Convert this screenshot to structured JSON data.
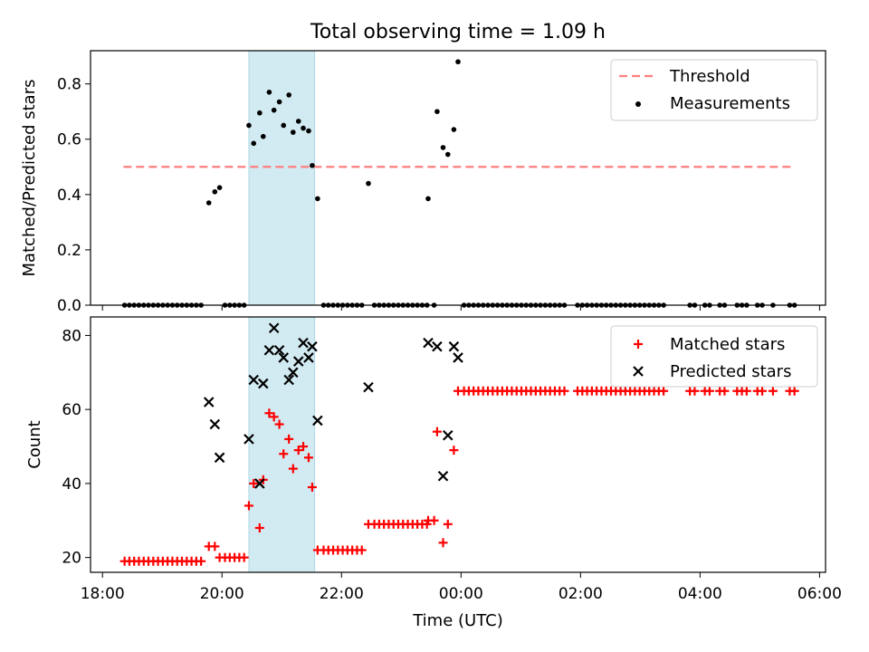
{
  "chart_data": {
    "title": "Total observing time = 1.09 h",
    "xlabel": "Time (UTC)",
    "x_axis": {
      "ticks": [
        "18:00",
        "20:00",
        "22:00",
        "00:00",
        "02:00",
        "04:00",
        "06:00"
      ],
      "tick_hours": [
        18,
        20,
        22,
        24,
        26,
        28,
        30
      ],
      "range_hours": [
        17.8,
        30.1
      ]
    },
    "shaded_interval_hours": [
      20.45,
      21.55
    ],
    "colors": {
      "shade": "#add8e6",
      "threshold": "#ff7f7f",
      "measurements": "#000000",
      "matched": "#ff0000",
      "predicted": "#000000"
    },
    "top": {
      "type": "scatter",
      "ylabel": "Matched/Predicted stars",
      "ylim": [
        0,
        0.92
      ],
      "yticks": [
        "0.0",
        "0.2",
        "0.4",
        "0.6",
        "0.8"
      ],
      "ytick_values": [
        0,
        0.2,
        0.4,
        0.6,
        0.8
      ],
      "legend_position": "top-right",
      "threshold": {
        "name": "Threshold",
        "value": 0.5,
        "x_range": [
          18.35,
          29.55
        ]
      },
      "series": {
        "name": "Measurements",
        "points": [
          [
            18.37,
            0
          ],
          [
            18.45,
            0
          ],
          [
            18.53,
            0
          ],
          [
            18.61,
            0
          ],
          [
            18.69,
            0
          ],
          [
            18.77,
            0
          ],
          [
            18.85,
            0
          ],
          [
            18.93,
            0
          ],
          [
            19.01,
            0
          ],
          [
            19.09,
            0
          ],
          [
            19.17,
            0
          ],
          [
            19.25,
            0
          ],
          [
            19.33,
            0
          ],
          [
            19.41,
            0
          ],
          [
            19.49,
            0
          ],
          [
            19.57,
            0
          ],
          [
            19.65,
            0
          ],
          [
            19.78,
            0.37
          ],
          [
            19.88,
            0.41
          ],
          [
            19.96,
            0.425
          ],
          [
            20.05,
            0
          ],
          [
            20.13,
            0
          ],
          [
            20.21,
            0
          ],
          [
            20.29,
            0
          ],
          [
            20.37,
            0
          ],
          [
            20.45,
            0.65
          ],
          [
            20.53,
            0.585
          ],
          [
            20.63,
            0.695
          ],
          [
            20.69,
            0.61
          ],
          [
            20.79,
            0.77
          ],
          [
            20.87,
            0.705
          ],
          [
            20.96,
            0.735
          ],
          [
            21.03,
            0.65
          ],
          [
            21.12,
            0.76
          ],
          [
            21.19,
            0.625
          ],
          [
            21.28,
            0.665
          ],
          [
            21.36,
            0.64
          ],
          [
            21.45,
            0.63
          ],
          [
            21.51,
            0.505
          ],
          [
            21.6,
            0.385
          ],
          [
            21.7,
            0
          ],
          [
            21.78,
            0
          ],
          [
            21.86,
            0
          ],
          [
            21.94,
            0
          ],
          [
            22.02,
            0
          ],
          [
            22.1,
            0
          ],
          [
            22.18,
            0
          ],
          [
            22.26,
            0
          ],
          [
            22.34,
            0
          ],
          [
            22.45,
            0.44
          ],
          [
            22.55,
            0
          ],
          [
            22.63,
            0
          ],
          [
            22.71,
            0
          ],
          [
            22.79,
            0
          ],
          [
            22.87,
            0
          ],
          [
            22.95,
            0
          ],
          [
            23.03,
            0
          ],
          [
            23.11,
            0
          ],
          [
            23.19,
            0
          ],
          [
            23.27,
            0
          ],
          [
            23.35,
            0
          ],
          [
            23.43,
            0
          ],
          [
            23.45,
            0.385
          ],
          [
            23.55,
            0
          ],
          [
            23.6,
            0.7
          ],
          [
            23.7,
            0.57
          ],
          [
            23.78,
            0.545
          ],
          [
            23.88,
            0.635
          ],
          [
            23.95,
            0.88
          ],
          [
            24.05,
            0
          ],
          [
            24.13,
            0
          ],
          [
            24.21,
            0
          ],
          [
            24.29,
            0
          ],
          [
            24.37,
            0
          ],
          [
            24.45,
            0
          ],
          [
            24.53,
            0
          ],
          [
            24.61,
            0
          ],
          [
            24.69,
            0
          ],
          [
            24.77,
            0
          ],
          [
            24.85,
            0
          ],
          [
            24.93,
            0
          ],
          [
            25.01,
            0
          ],
          [
            25.09,
            0
          ],
          [
            25.17,
            0
          ],
          [
            25.25,
            0
          ],
          [
            25.33,
            0
          ],
          [
            25.41,
            0
          ],
          [
            25.49,
            0
          ],
          [
            25.57,
            0
          ],
          [
            25.65,
            0
          ],
          [
            25.73,
            0
          ],
          [
            25.95,
            0
          ],
          [
            26.03,
            0
          ],
          [
            26.11,
            0
          ],
          [
            26.19,
            0
          ],
          [
            26.27,
            0
          ],
          [
            26.35,
            0
          ],
          [
            26.43,
            0
          ],
          [
            26.51,
            0
          ],
          [
            26.59,
            0
          ],
          [
            26.67,
            0
          ],
          [
            26.75,
            0
          ],
          [
            26.83,
            0
          ],
          [
            26.91,
            0
          ],
          [
            26.99,
            0
          ],
          [
            27.07,
            0
          ],
          [
            27.15,
            0
          ],
          [
            27.23,
            0
          ],
          [
            27.31,
            0
          ],
          [
            27.39,
            0
          ],
          [
            27.83,
            0
          ],
          [
            27.91,
            0
          ],
          [
            28.08,
            0
          ],
          [
            28.16,
            0
          ],
          [
            28.33,
            0
          ],
          [
            28.41,
            0
          ],
          [
            28.62,
            0
          ],
          [
            28.7,
            0
          ],
          [
            28.78,
            0
          ],
          [
            28.96,
            0
          ],
          [
            29.04,
            0
          ],
          [
            29.22,
            0
          ],
          [
            29.5,
            0
          ],
          [
            29.58,
            0
          ]
        ]
      }
    },
    "bottom": {
      "type": "scatter",
      "ylabel": "Count",
      "ylim": [
        16,
        85
      ],
      "yticks": [
        "20",
        "40",
        "60",
        "80"
      ],
      "ytick_values": [
        20,
        40,
        60,
        80
      ],
      "legend_position": "top-right",
      "series": [
        {
          "name": "Matched stars",
          "marker": "plus",
          "points": [
            [
              18.37,
              19
            ],
            [
              18.45,
              19
            ],
            [
              18.53,
              19
            ],
            [
              18.61,
              19
            ],
            [
              18.69,
              19
            ],
            [
              18.77,
              19
            ],
            [
              18.85,
              19
            ],
            [
              18.93,
              19
            ],
            [
              19.01,
              19
            ],
            [
              19.09,
              19
            ],
            [
              19.17,
              19
            ],
            [
              19.25,
              19
            ],
            [
              19.33,
              19
            ],
            [
              19.41,
              19
            ],
            [
              19.49,
              19
            ],
            [
              19.57,
              19
            ],
            [
              19.65,
              19
            ],
            [
              19.78,
              23
            ],
            [
              19.88,
              23
            ],
            [
              19.96,
              20
            ],
            [
              20.05,
              20
            ],
            [
              20.13,
              20
            ],
            [
              20.21,
              20
            ],
            [
              20.29,
              20
            ],
            [
              20.37,
              20
            ],
            [
              20.45,
              34
            ],
            [
              20.53,
              40
            ],
            [
              20.63,
              28
            ],
            [
              20.69,
              41
            ],
            [
              20.79,
              59
            ],
            [
              20.87,
              58
            ],
            [
              20.96,
              56
            ],
            [
              21.03,
              48
            ],
            [
              21.12,
              52
            ],
            [
              21.19,
              44
            ],
            [
              21.28,
              49
            ],
            [
              21.36,
              50
            ],
            [
              21.45,
              47
            ],
            [
              21.51,
              39
            ],
            [
              21.6,
              22
            ],
            [
              21.7,
              22
            ],
            [
              21.78,
              22
            ],
            [
              21.86,
              22
            ],
            [
              21.94,
              22
            ],
            [
              22.02,
              22
            ],
            [
              22.1,
              22
            ],
            [
              22.18,
              22
            ],
            [
              22.26,
              22
            ],
            [
              22.34,
              22
            ],
            [
              22.45,
              29
            ],
            [
              22.55,
              29
            ],
            [
              22.63,
              29
            ],
            [
              22.71,
              29
            ],
            [
              22.79,
              29
            ],
            [
              22.87,
              29
            ],
            [
              22.95,
              29
            ],
            [
              23.03,
              29
            ],
            [
              23.11,
              29
            ],
            [
              23.19,
              29
            ],
            [
              23.27,
              29
            ],
            [
              23.35,
              29
            ],
            [
              23.43,
              29
            ],
            [
              23.45,
              30
            ],
            [
              23.55,
              30
            ],
            [
              23.6,
              54
            ],
            [
              23.7,
              24
            ],
            [
              23.78,
              29
            ],
            [
              23.88,
              49
            ],
            [
              23.95,
              65
            ],
            [
              24.05,
              65
            ],
            [
              24.13,
              65
            ],
            [
              24.21,
              65
            ],
            [
              24.29,
              65
            ],
            [
              24.37,
              65
            ],
            [
              24.45,
              65
            ],
            [
              24.53,
              65
            ],
            [
              24.61,
              65
            ],
            [
              24.69,
              65
            ],
            [
              24.77,
              65
            ],
            [
              24.85,
              65
            ],
            [
              24.93,
              65
            ],
            [
              25.01,
              65
            ],
            [
              25.09,
              65
            ],
            [
              25.17,
              65
            ],
            [
              25.25,
              65
            ],
            [
              25.33,
              65
            ],
            [
              25.41,
              65
            ],
            [
              25.49,
              65
            ],
            [
              25.57,
              65
            ],
            [
              25.65,
              65
            ],
            [
              25.73,
              65
            ],
            [
              25.95,
              65
            ],
            [
              26.03,
              65
            ],
            [
              26.11,
              65
            ],
            [
              26.19,
              65
            ],
            [
              26.27,
              65
            ],
            [
              26.35,
              65
            ],
            [
              26.43,
              65
            ],
            [
              26.51,
              65
            ],
            [
              26.59,
              65
            ],
            [
              26.67,
              65
            ],
            [
              26.75,
              65
            ],
            [
              26.83,
              65
            ],
            [
              26.91,
              65
            ],
            [
              26.99,
              65
            ],
            [
              27.07,
              65
            ],
            [
              27.15,
              65
            ],
            [
              27.23,
              65
            ],
            [
              27.31,
              65
            ],
            [
              27.39,
              65
            ],
            [
              27.83,
              65
            ],
            [
              27.91,
              65
            ],
            [
              28.08,
              65
            ],
            [
              28.16,
              65
            ],
            [
              28.33,
              65
            ],
            [
              28.41,
              65
            ],
            [
              28.62,
              65
            ],
            [
              28.7,
              65
            ],
            [
              28.78,
              65
            ],
            [
              28.96,
              65
            ],
            [
              29.04,
              65
            ],
            [
              29.22,
              65
            ],
            [
              29.5,
              65
            ],
            [
              29.58,
              65
            ]
          ]
        },
        {
          "name": "Predicted stars",
          "marker": "cross",
          "points": [
            [
              19.78,
              62
            ],
            [
              19.88,
              56
            ],
            [
              19.96,
              47
            ],
            [
              20.45,
              52
            ],
            [
              20.53,
              68
            ],
            [
              20.63,
              40
            ],
            [
              20.69,
              67
            ],
            [
              20.79,
              76
            ],
            [
              20.87,
              82
            ],
            [
              20.96,
              76
            ],
            [
              21.03,
              74
            ],
            [
              21.12,
              68
            ],
            [
              21.19,
              70
            ],
            [
              21.28,
              73
            ],
            [
              21.36,
              78
            ],
            [
              21.45,
              74
            ],
            [
              21.51,
              77
            ],
            [
              21.6,
              57
            ],
            [
              22.45,
              66
            ],
            [
              23.45,
              78
            ],
            [
              23.6,
              77
            ],
            [
              23.7,
              42
            ],
            [
              23.78,
              53
            ],
            [
              23.88,
              77
            ],
            [
              23.95,
              74
            ]
          ]
        }
      ]
    }
  }
}
